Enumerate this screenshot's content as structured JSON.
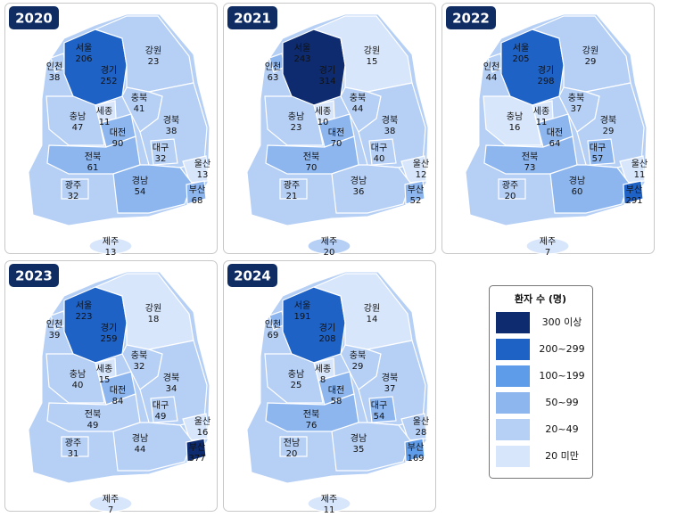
{
  "panels": [
    {
      "year": "2020",
      "regions": [
        {
          "name": "서울",
          "value": 206
        },
        {
          "name": "인천",
          "value": 38
        },
        {
          "name": "경기",
          "value": 252
        },
        {
          "name": "강원",
          "value": 23
        },
        {
          "name": "충북",
          "value": 41
        },
        {
          "name": "충남",
          "value": 47
        },
        {
          "name": "세종",
          "value": 11
        },
        {
          "name": "대전",
          "value": 90
        },
        {
          "name": "경북",
          "value": 38
        },
        {
          "name": "대구",
          "value": 32
        },
        {
          "name": "전북",
          "value": 61
        },
        {
          "name": "울산",
          "value": 13
        },
        {
          "name": "광주",
          "value": 32
        },
        {
          "name": "경남",
          "value": 54
        },
        {
          "name": "부산",
          "value": 68
        },
        {
          "name": "제주",
          "value": 13
        }
      ]
    },
    {
      "year": "2021",
      "regions": [
        {
          "name": "서울",
          "value": 243
        },
        {
          "name": "인천",
          "value": 63
        },
        {
          "name": "경기",
          "value": 314
        },
        {
          "name": "강원",
          "value": 15
        },
        {
          "name": "충북",
          "value": 44
        },
        {
          "name": "충남",
          "value": 23
        },
        {
          "name": "세종",
          "value": 10
        },
        {
          "name": "대전",
          "value": 70
        },
        {
          "name": "경북",
          "value": 38
        },
        {
          "name": "대구",
          "value": 40
        },
        {
          "name": "전북",
          "value": 70
        },
        {
          "name": "울산",
          "value": 12
        },
        {
          "name": "광주",
          "value": 21
        },
        {
          "name": "경남",
          "value": 36
        },
        {
          "name": "부산",
          "value": 52
        },
        {
          "name": "제주",
          "value": 20
        }
      ]
    },
    {
      "year": "2022",
      "regions": [
        {
          "name": "서울",
          "value": 205
        },
        {
          "name": "인천",
          "value": 44
        },
        {
          "name": "경기",
          "value": 298
        },
        {
          "name": "강원",
          "value": 29
        },
        {
          "name": "충북",
          "value": 37
        },
        {
          "name": "충남",
          "value": 16
        },
        {
          "name": "세종",
          "value": 11
        },
        {
          "name": "대전",
          "value": 64
        },
        {
          "name": "경북",
          "value": 29
        },
        {
          "name": "대구",
          "value": 57
        },
        {
          "name": "전북",
          "value": 73
        },
        {
          "name": "울산",
          "value": 11
        },
        {
          "name": "광주",
          "value": 20
        },
        {
          "name": "경남",
          "value": 60
        },
        {
          "name": "부산",
          "value": 291
        },
        {
          "name": "제주",
          "value": 7
        }
      ]
    },
    {
      "year": "2023",
      "regions": [
        {
          "name": "서울",
          "value": 223
        },
        {
          "name": "인천",
          "value": 39
        },
        {
          "name": "경기",
          "value": 259
        },
        {
          "name": "강원",
          "value": 18
        },
        {
          "name": "충북",
          "value": 32
        },
        {
          "name": "충남",
          "value": 40
        },
        {
          "name": "세종",
          "value": 15
        },
        {
          "name": "대전",
          "value": 84
        },
        {
          "name": "경북",
          "value": 34
        },
        {
          "name": "대구",
          "value": 49
        },
        {
          "name": "전북",
          "value": 49
        },
        {
          "name": "울산",
          "value": 16
        },
        {
          "name": "광주",
          "value": 31
        },
        {
          "name": "경남",
          "value": 44
        },
        {
          "name": "부산",
          "value": 377
        },
        {
          "name": "제주",
          "value": 7
        }
      ]
    },
    {
      "year": "2024",
      "regions": [
        {
          "name": "서울",
          "value": 191
        },
        {
          "name": "인천",
          "value": 69
        },
        {
          "name": "경기",
          "value": 208
        },
        {
          "name": "강원",
          "value": 14
        },
        {
          "name": "충북",
          "value": 29
        },
        {
          "name": "충남",
          "value": 25
        },
        {
          "name": "세종",
          "value": 8
        },
        {
          "name": "대전",
          "value": 58
        },
        {
          "name": "경북",
          "value": 37
        },
        {
          "name": "대구",
          "value": 54
        },
        {
          "name": "전북",
          "value": 76
        },
        {
          "name": "울산",
          "value": 28
        },
        {
          "name": "전남",
          "value": 20
        },
        {
          "name": "경남",
          "value": 35
        },
        {
          "name": "부산",
          "value": 169
        },
        {
          "name": "제주",
          "value": 11
        }
      ]
    }
  ],
  "legend": {
    "title": "환자 수 (명)",
    "items": [
      {
        "label": "300 이상",
        "min": 300,
        "color": "#0d2b6e"
      },
      {
        "label": "200~299",
        "min": 200,
        "color": "#1f62c6"
      },
      {
        "label": "100~199",
        "min": 100,
        "color": "#5e9be8"
      },
      {
        "label": "50~99",
        "min": 50,
        "color": "#8db6ef"
      },
      {
        "label": "20~49",
        "min": 20,
        "color": "#b5cff5"
      },
      {
        "label": "20 미만",
        "color": "#d8e6fb"
      }
    ]
  }
}
